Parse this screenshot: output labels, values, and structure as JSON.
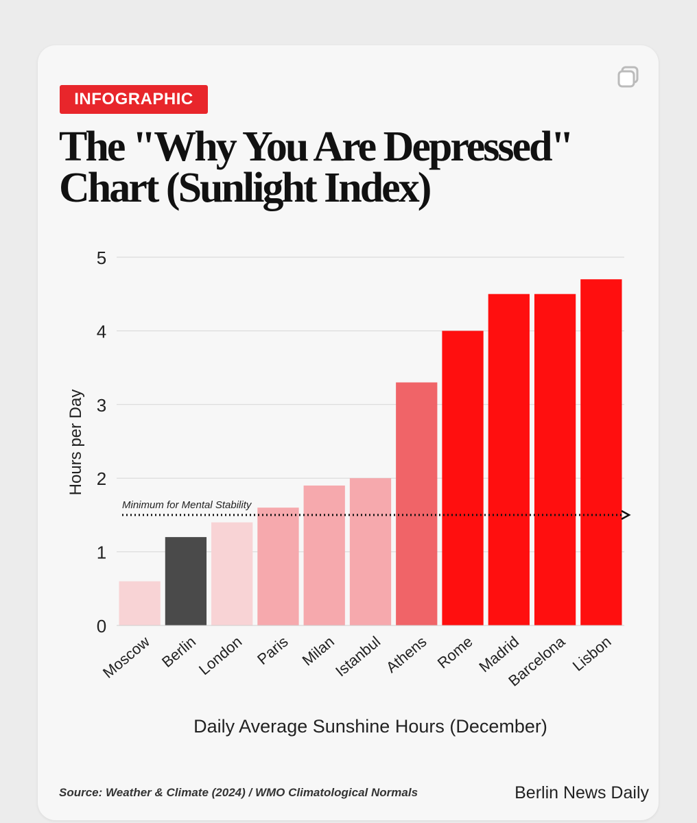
{
  "tag": "INFOGRAPHIC",
  "icons": {
    "corner": "copy-icon"
  },
  "chart_data": {
    "type": "bar",
    "title": "The \"Why You Are Depressed\" Chart (Sunlight Index)",
    "xlabel": "Daily Average Sunshine Hours (December)",
    "ylabel": "Hours per Day",
    "ylim": [
      0,
      5
    ],
    "yticks": [
      0,
      1,
      2,
      3,
      4,
      5
    ],
    "grid": true,
    "categories": [
      "Moscow",
      "Berlin",
      "London",
      "Paris",
      "Milan",
      "Istanbul",
      "Athens",
      "Rome",
      "Madrid",
      "Barcelona",
      "Lisbon"
    ],
    "values": [
      0.6,
      1.2,
      1.4,
      1.6,
      1.9,
      2.0,
      3.3,
      4.0,
      4.5,
      4.5,
      4.7
    ],
    "colors": [
      "#f8d3d5",
      "#4a4a4a",
      "#f8d3d5",
      "#f6a9ad",
      "#f6a9ad",
      "#f6a9ad",
      "#f06468",
      "#ff0f0f",
      "#ff0f0f",
      "#ff0f0f",
      "#ff0f0f"
    ],
    "reference_line": {
      "value": 1.5,
      "label": "Minimum for Mental Stability",
      "style": "dotted"
    }
  },
  "footer": {
    "source": "Source: Weather & Climate (2024) / WMO Climatological Normals",
    "brand": "Berlin News Daily"
  }
}
